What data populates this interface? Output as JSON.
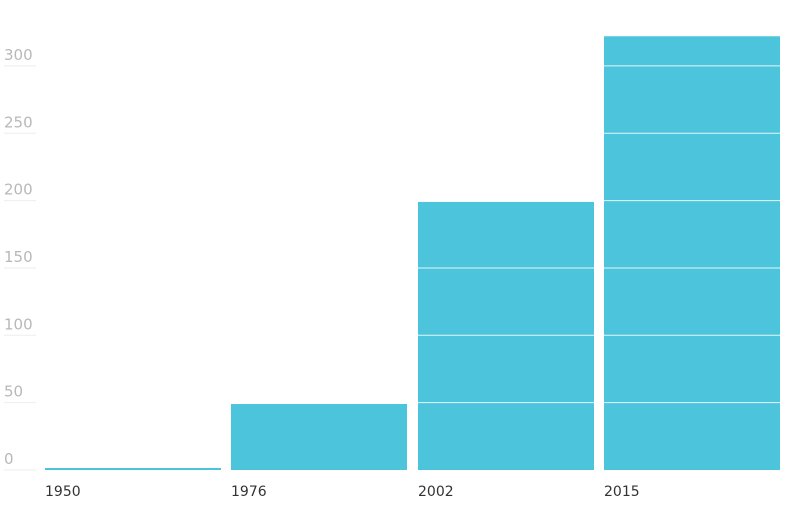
{
  "chart_data": {
    "type": "bar",
    "categories": [
      "1950",
      "1976",
      "2002",
      "2015"
    ],
    "values": [
      1,
      49,
      199,
      322
    ],
    "title": "",
    "xlabel": "",
    "ylabel": "",
    "ylim": [
      0,
      322
    ],
    "yticks": [
      0,
      50,
      100,
      150,
      200,
      250,
      300
    ],
    "grid": true,
    "legend": "none",
    "colors": {
      "bar": "#4cc4dc",
      "gridline": "#ffffff",
      "tick_label": "#b8b8b8",
      "category_label": "#333333"
    }
  }
}
